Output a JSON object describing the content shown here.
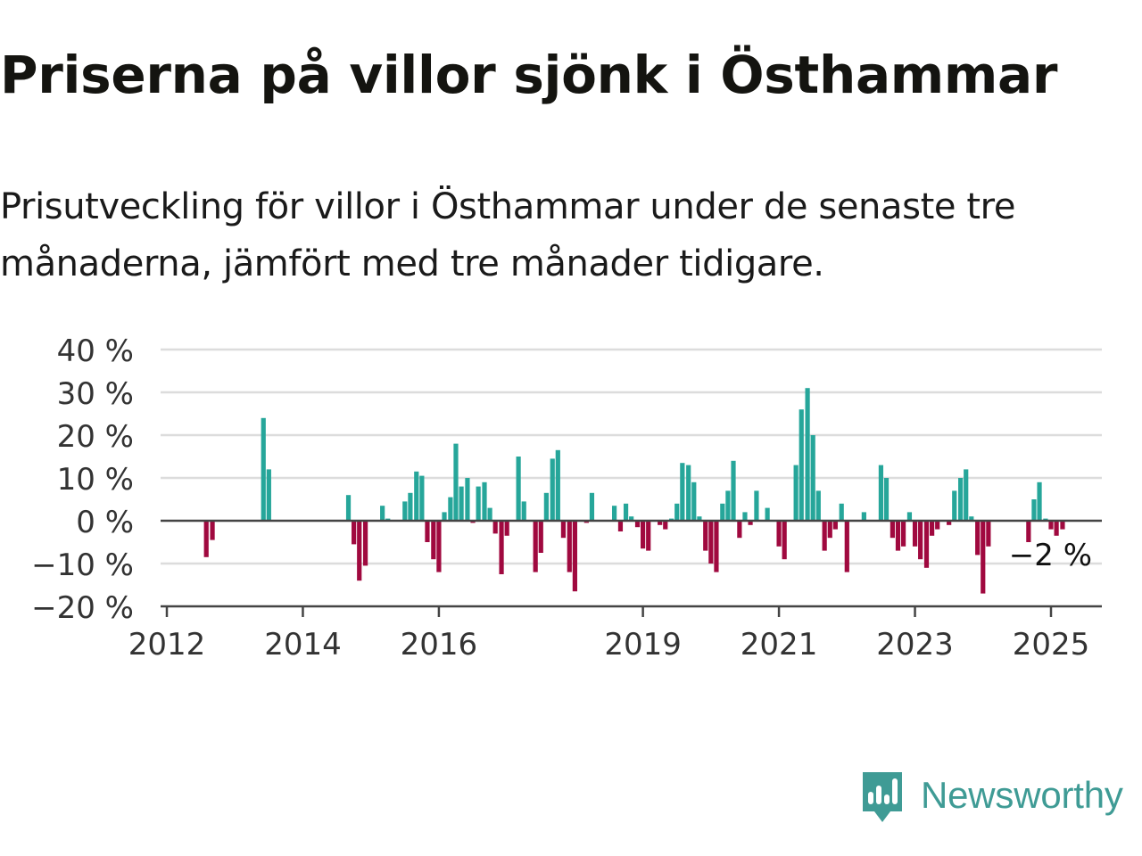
{
  "title": "Priserna på villor sjönk i Östhammar",
  "subtitle": "Prisutveckling för villor i Östhammar under de senaste tre månaderna, jämfört med tre månader tidigare.",
  "brand": {
    "name": "Newsworthy",
    "icon": "newsworthy-logo-icon",
    "color": "#3f9b95"
  },
  "chart_data": {
    "type": "bar",
    "x_unit": "year (decimal)",
    "y_unit": "%",
    "ylim": [
      -20,
      40
    ],
    "y_ticks": [
      40,
      30,
      20,
      10,
      0,
      -10,
      -20
    ],
    "y_tick_labels": [
      "40 %",
      "30 %",
      "20 %",
      "10 %",
      "0 %",
      "−10 %",
      "−20 %"
    ],
    "x_ticks": [
      2012,
      2014,
      2016,
      2019,
      2021,
      2023,
      2025
    ],
    "x_tick_labels": [
      "2012",
      "2014",
      "2016",
      "2019",
      "2021",
      "2023",
      "2025"
    ],
    "grid": true,
    "positive_color": "#26a69a",
    "negative_color": "#a0093f",
    "last_value_label": "−2 %",
    "points": [
      {
        "x": 2012.58,
        "y": -8.5
      },
      {
        "x": 2012.67,
        "y": -4.5
      },
      {
        "x": 2013.42,
        "y": 24
      },
      {
        "x": 2013.5,
        "y": 12
      },
      {
        "x": 2014.67,
        "y": 6
      },
      {
        "x": 2014.75,
        "y": -5.5
      },
      {
        "x": 2014.83,
        "y": -14
      },
      {
        "x": 2014.92,
        "y": -10.5
      },
      {
        "x": 2015.17,
        "y": 3.5
      },
      {
        "x": 2015.25,
        "y": 0.5
      },
      {
        "x": 2015.5,
        "y": 4.5
      },
      {
        "x": 2015.58,
        "y": 6.5
      },
      {
        "x": 2015.67,
        "y": 11.5
      },
      {
        "x": 2015.75,
        "y": 10.5
      },
      {
        "x": 2015.83,
        "y": -5
      },
      {
        "x": 2015.92,
        "y": -9
      },
      {
        "x": 2016.0,
        "y": -12
      },
      {
        "x": 2016.08,
        "y": 2
      },
      {
        "x": 2016.17,
        "y": 5.5
      },
      {
        "x": 2016.25,
        "y": 18
      },
      {
        "x": 2016.33,
        "y": 8
      },
      {
        "x": 2016.42,
        "y": 10
      },
      {
        "x": 2016.5,
        "y": -0.5
      },
      {
        "x": 2016.58,
        "y": 8
      },
      {
        "x": 2016.67,
        "y": 9
      },
      {
        "x": 2016.75,
        "y": 3
      },
      {
        "x": 2016.83,
        "y": -3
      },
      {
        "x": 2016.92,
        "y": -12.5
      },
      {
        "x": 2017.0,
        "y": -3.5
      },
      {
        "x": 2017.17,
        "y": 15
      },
      {
        "x": 2017.25,
        "y": 4.5
      },
      {
        "x": 2017.42,
        "y": -12
      },
      {
        "x": 2017.5,
        "y": -7.5
      },
      {
        "x": 2017.58,
        "y": 6.5
      },
      {
        "x": 2017.67,
        "y": 14.5
      },
      {
        "x": 2017.75,
        "y": 16.5
      },
      {
        "x": 2017.83,
        "y": -4
      },
      {
        "x": 2017.92,
        "y": -12
      },
      {
        "x": 2018.0,
        "y": -16.5
      },
      {
        "x": 2018.17,
        "y": -0.5
      },
      {
        "x": 2018.25,
        "y": 6.5
      },
      {
        "x": 2018.58,
        "y": 3.5
      },
      {
        "x": 2018.67,
        "y": -2.5
      },
      {
        "x": 2018.75,
        "y": 4
      },
      {
        "x": 2018.83,
        "y": 1
      },
      {
        "x": 2018.92,
        "y": -1.5
      },
      {
        "x": 2019.0,
        "y": -6.5
      },
      {
        "x": 2019.08,
        "y": -7
      },
      {
        "x": 2019.25,
        "y": -1
      },
      {
        "x": 2019.33,
        "y": -2
      },
      {
        "x": 2019.42,
        "y": 0.5
      },
      {
        "x": 2019.5,
        "y": 4
      },
      {
        "x": 2019.58,
        "y": 13.5
      },
      {
        "x": 2019.67,
        "y": 13
      },
      {
        "x": 2019.75,
        "y": 9
      },
      {
        "x": 2019.83,
        "y": 1
      },
      {
        "x": 2019.92,
        "y": -7
      },
      {
        "x": 2020.0,
        "y": -10
      },
      {
        "x": 2020.08,
        "y": -12
      },
      {
        "x": 2020.17,
        "y": 4
      },
      {
        "x": 2020.25,
        "y": 7
      },
      {
        "x": 2020.33,
        "y": 14
      },
      {
        "x": 2020.42,
        "y": -4
      },
      {
        "x": 2020.5,
        "y": 2
      },
      {
        "x": 2020.58,
        "y": -1
      },
      {
        "x": 2020.67,
        "y": 7
      },
      {
        "x": 2020.83,
        "y": 3
      },
      {
        "x": 2021.0,
        "y": -6
      },
      {
        "x": 2021.08,
        "y": -9
      },
      {
        "x": 2021.25,
        "y": 13
      },
      {
        "x": 2021.33,
        "y": 26
      },
      {
        "x": 2021.42,
        "y": 31
      },
      {
        "x": 2021.5,
        "y": 20
      },
      {
        "x": 2021.58,
        "y": 7
      },
      {
        "x": 2021.67,
        "y": -7
      },
      {
        "x": 2021.75,
        "y": -4
      },
      {
        "x": 2021.83,
        "y": -2
      },
      {
        "x": 2021.92,
        "y": 4
      },
      {
        "x": 2022.0,
        "y": -12
      },
      {
        "x": 2022.25,
        "y": 2
      },
      {
        "x": 2022.5,
        "y": 13
      },
      {
        "x": 2022.58,
        "y": 10
      },
      {
        "x": 2022.67,
        "y": -4
      },
      {
        "x": 2022.75,
        "y": -7
      },
      {
        "x": 2022.83,
        "y": -6
      },
      {
        "x": 2022.92,
        "y": 2
      },
      {
        "x": 2023.0,
        "y": -6
      },
      {
        "x": 2023.08,
        "y": -9
      },
      {
        "x": 2023.17,
        "y": -11
      },
      {
        "x": 2023.25,
        "y": -3.5
      },
      {
        "x": 2023.33,
        "y": -2
      },
      {
        "x": 2023.5,
        "y": -1
      },
      {
        "x": 2023.58,
        "y": 7
      },
      {
        "x": 2023.67,
        "y": 10
      },
      {
        "x": 2023.75,
        "y": 12
      },
      {
        "x": 2023.83,
        "y": 1
      },
      {
        "x": 2023.92,
        "y": -8
      },
      {
        "x": 2024.0,
        "y": -17
      },
      {
        "x": 2024.08,
        "y": -6
      },
      {
        "x": 2024.67,
        "y": -5
      },
      {
        "x": 2024.75,
        "y": 5
      },
      {
        "x": 2024.83,
        "y": 9
      },
      {
        "x": 2024.92,
        "y": 0.5
      },
      {
        "x": 2025.0,
        "y": -2
      },
      {
        "x": 2025.08,
        "y": -3.5
      },
      {
        "x": 2025.17,
        "y": -2
      }
    ]
  }
}
